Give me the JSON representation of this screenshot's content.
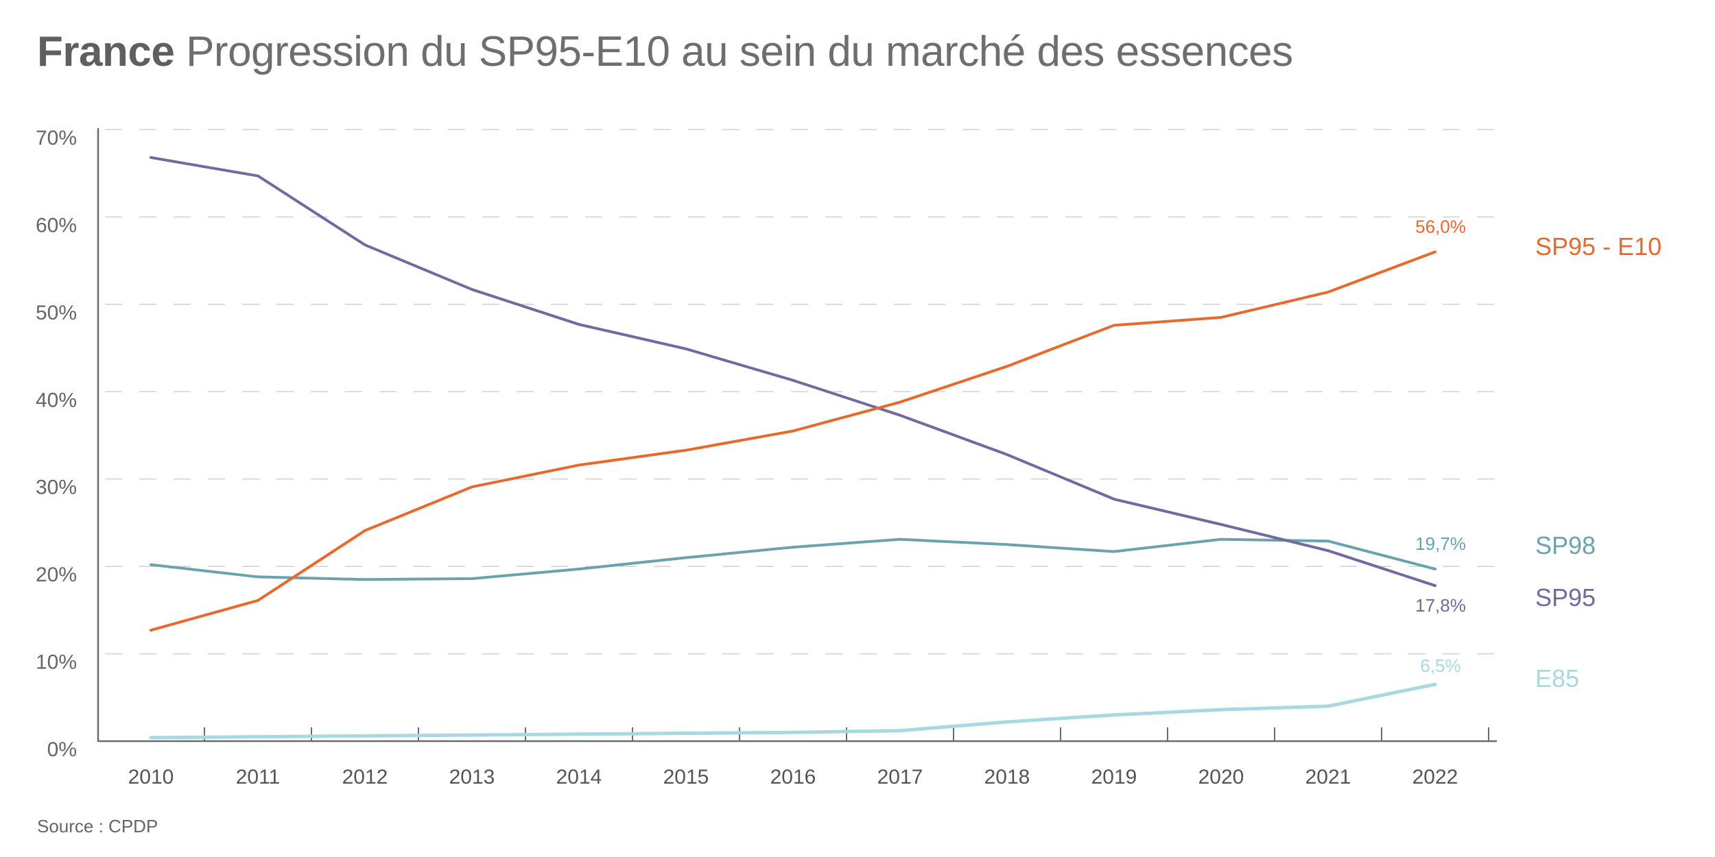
{
  "title": {
    "bold": "France",
    "rest": "Progression du SP95-E10 au sein du marché des essences"
  },
  "source": "Source : CPDP",
  "chart_data": {
    "type": "line",
    "title": "France Progression du SP95-E10 au sein du marché des essences",
    "xlabel": "",
    "ylabel": "",
    "x": [
      "2010",
      "2011",
      "2012",
      "2013",
      "2014",
      "2015",
      "2016",
      "2017",
      "2018",
      "2019",
      "2020",
      "2021",
      "2022"
    ],
    "ylim": [
      0,
      70
    ],
    "yticks": [
      0,
      10,
      20,
      30,
      40,
      50,
      60,
      70
    ],
    "ytick_labels": [
      "0%",
      "10%",
      "20%",
      "30%",
      "40%",
      "50%",
      "60%",
      "70%"
    ],
    "grid": "horizontal dashed",
    "legend": "right (labels at line ends)",
    "series": [
      {
        "name": "SP95 - E10",
        "color": "#e8692d",
        "values": [
          12.7,
          16.1,
          24.1,
          29.1,
          31.6,
          33.3,
          35.5,
          38.8,
          42.9,
          47.6,
          48.5,
          51.4,
          56.0
        ],
        "end_label": "56,0%"
      },
      {
        "name": "SP98",
        "color": "#6aa3ad",
        "values": [
          20.2,
          18.8,
          18.5,
          18.6,
          19.7,
          21.0,
          22.2,
          23.1,
          22.5,
          21.7,
          23.1,
          22.9,
          19.7
        ],
        "end_label": "19,7%"
      },
      {
        "name": "SP95",
        "color": "#6f6aa0",
        "values": [
          66.8,
          64.7,
          56.8,
          51.7,
          47.7,
          44.9,
          41.3,
          37.3,
          32.8,
          27.7,
          24.8,
          21.8,
          17.8
        ],
        "end_label": "17,8%"
      },
      {
        "name": "E85",
        "color": "#a8d8e2",
        "values": [
          0.4,
          0.5,
          0.6,
          0.7,
          0.8,
          0.9,
          1.0,
          1.2,
          2.2,
          3.0,
          3.6,
          4.0,
          6.5
        ],
        "end_label": "6,5%"
      }
    ]
  }
}
